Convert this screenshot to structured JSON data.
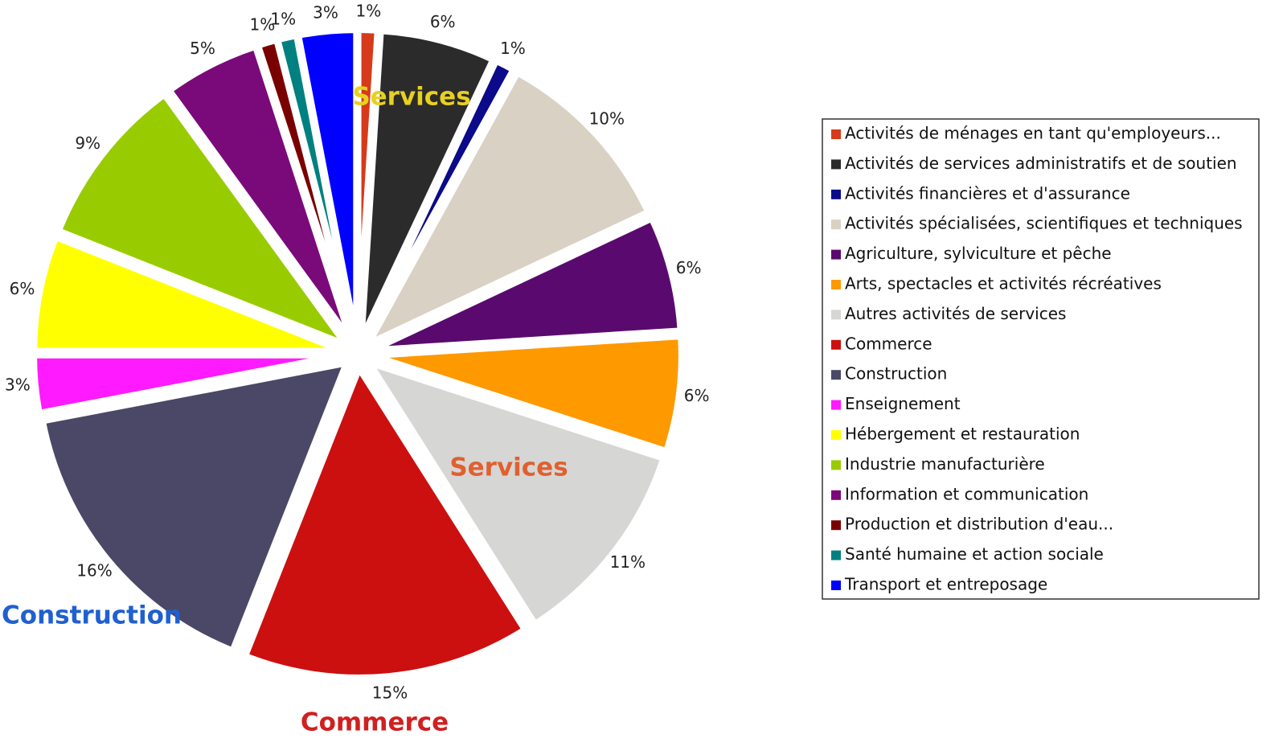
{
  "chart_data": {
    "type": "pie",
    "categories": [
      "Activités de ménages en tant qu'employeurs...",
      "Activités de services administratifs et de soutien",
      "Activités financières et d'assurance",
      "Activités spécialisées, scientifiques et techniques",
      "Agriculture, sylviculture et pêche",
      "Arts, spectacles et activités récréatives",
      "Autres activités de services",
      "Commerce",
      "Construction",
      "Enseignement",
      "Hébergement et restauration",
      "Industrie manufacturière",
      "Information et communication",
      "Production et distribution d'eau...",
      "Santé humaine et action sociale",
      "Transport et entreposage"
    ],
    "values": [
      1,
      6,
      1,
      10,
      6,
      6,
      11,
      15,
      16,
      3,
      6,
      9,
      5,
      1,
      1,
      3
    ],
    "value_labels": [
      "1%",
      "6%",
      "1%",
      "10%",
      "6%",
      "6%",
      "11%",
      "15%",
      "16%",
      "3%",
      "6%",
      "9%",
      "5%",
      "1%",
      "1%",
      "3%"
    ],
    "colors": [
      "#d63a1a",
      "#2b2b2b",
      "#0a0a8a",
      "#d9d1c3",
      "#5a0a6e",
      "#ff9900",
      "#d6d6d4",
      "#cc1010",
      "#4a4866",
      "#ff1aff",
      "#ffff00",
      "#99cc00",
      "#7a0a7a",
      "#7a0000",
      "#008080",
      "#0000ff"
    ],
    "annotations": [
      {
        "text": "Services",
        "color": "#e8d020"
      },
      {
        "text": "Services",
        "color": "#e06030"
      },
      {
        "text": "Construction",
        "color": "#2060d0"
      },
      {
        "text": "Commerce",
        "color": "#d02020"
      }
    ]
  }
}
